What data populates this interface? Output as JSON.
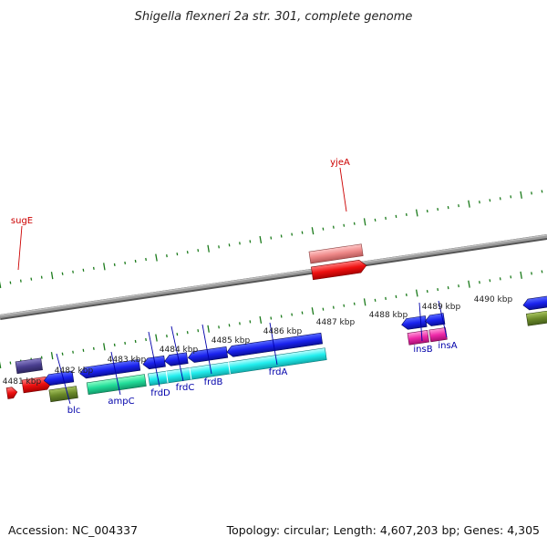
{
  "title": "Shigella flexneri 2a str. 301, complete genome",
  "footer": {
    "accession": "Accession: NC_004337",
    "summary": "Topology: circular; Length: 4,607,203 bp; Genes: 4,305"
  },
  "kbp_ticks": [
    "4481 kbp",
    "4482 kbp",
    "4483 kbp",
    "4484 kbp",
    "4485 kbp",
    "4486 kbp",
    "4487 kbp",
    "4488 kbp",
    "4489 kbp",
    "4490 kbp"
  ],
  "gene_labels": {
    "top": [
      "sugE",
      "yjeA"
    ],
    "bottom": [
      "blc",
      "ampC",
      "frdD",
      "frdC",
      "frdB",
      "frdA",
      "insB",
      "insA"
    ]
  },
  "colors": {
    "top_label": "#cc0000",
    "bottom_label": "#0000aa",
    "backbone": "#888888",
    "tick": "#1a7a1a"
  }
}
